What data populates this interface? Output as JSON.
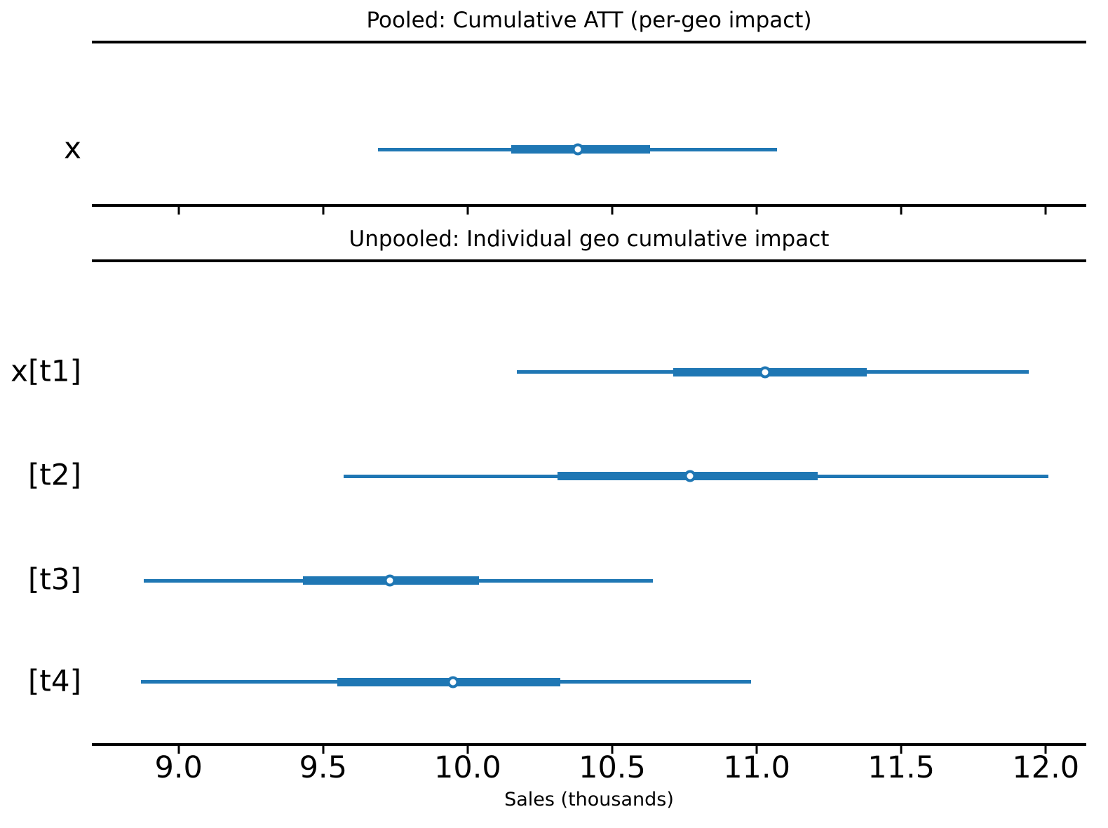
{
  "figure": {
    "background_color": "#ffffff",
    "text_color": "#000000",
    "accent_color": "#1f77b4"
  },
  "chart_data": {
    "type": "forest",
    "orientation": "horizontal",
    "grid": false,
    "legend": null,
    "xlabel": "Sales (thousands)",
    "xlim": [
      8.7,
      12.14
    ],
    "xticks": [
      9.0,
      9.5,
      10.0,
      10.5,
      11.0,
      11.5,
      12.0
    ],
    "xtick_labels": [
      "9.0",
      "9.5",
      "10.0",
      "10.5",
      "11.0",
      "11.5",
      "12.0"
    ],
    "marker_style": "open-circle",
    "panels": [
      {
        "title": "Pooled: Cumulative ATT (per-geo impact)",
        "rows": [
          {
            "label": "x",
            "interval_outer": [
              9.69,
              11.07
            ],
            "interval_inner": [
              10.15,
              10.63
            ],
            "point": 10.38
          }
        ]
      },
      {
        "title": "Unpooled: Individual geo cumulative impact",
        "rows": [
          {
            "label": "x[t1]",
            "interval_outer": [
              10.17,
              11.94
            ],
            "interval_inner": [
              10.71,
              11.38
            ],
            "point": 11.03
          },
          {
            "label": "[t2]",
            "interval_outer": [
              9.57,
              12.01
            ],
            "interval_inner": [
              10.31,
              11.21
            ],
            "point": 10.77
          },
          {
            "label": "[t3]",
            "interval_outer": [
              8.88,
              10.64
            ],
            "interval_inner": [
              9.43,
              10.04
            ],
            "point": 9.73
          },
          {
            "label": "[t4]",
            "interval_outer": [
              8.87,
              10.98
            ],
            "interval_inner": [
              9.55,
              10.32
            ],
            "point": 9.95
          }
        ]
      }
    ]
  }
}
